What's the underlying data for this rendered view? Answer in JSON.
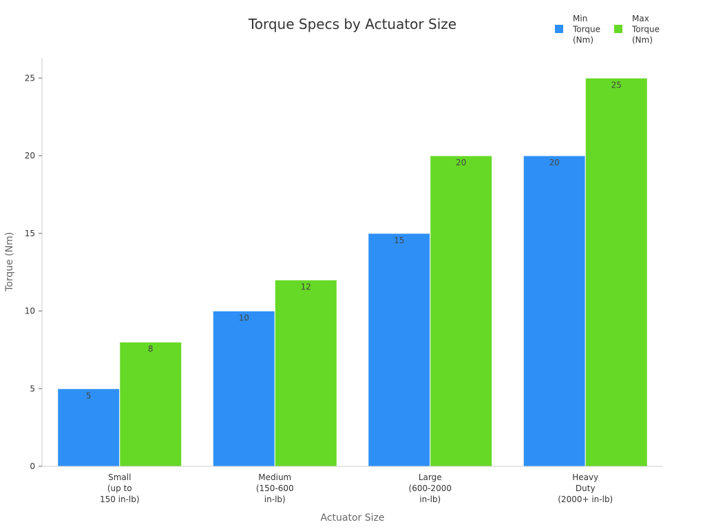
{
  "chart_data": {
    "type": "bar",
    "title": "Torque Specs by Actuator Size",
    "xlabel": "Actuator Size",
    "ylabel": "Torque (Nm)",
    "categories": [
      [
        "Small",
        "(up to",
        "150 in-lb)"
      ],
      [
        "Medium",
        "(150-600",
        "in-lb)"
      ],
      [
        "Large",
        "(600-2000",
        "in-lb)"
      ],
      [
        "Heavy",
        "Duty",
        "(2000+ in-lb)"
      ]
    ],
    "series": [
      {
        "name": [
          "Min",
          "Torque",
          "(Nm)"
        ],
        "values": [
          5,
          10,
          15,
          20
        ],
        "color": "#2e90f7"
      },
      {
        "name": [
          "Max",
          "Torque",
          "(Nm)"
        ],
        "values": [
          8,
          12,
          20,
          25
        ],
        "color": "#66d926"
      }
    ],
    "ylim": [
      0,
      26.3
    ],
    "yticks": [
      0,
      5,
      10,
      15,
      20,
      25
    ],
    "grid": false,
    "legend": "top-right"
  }
}
